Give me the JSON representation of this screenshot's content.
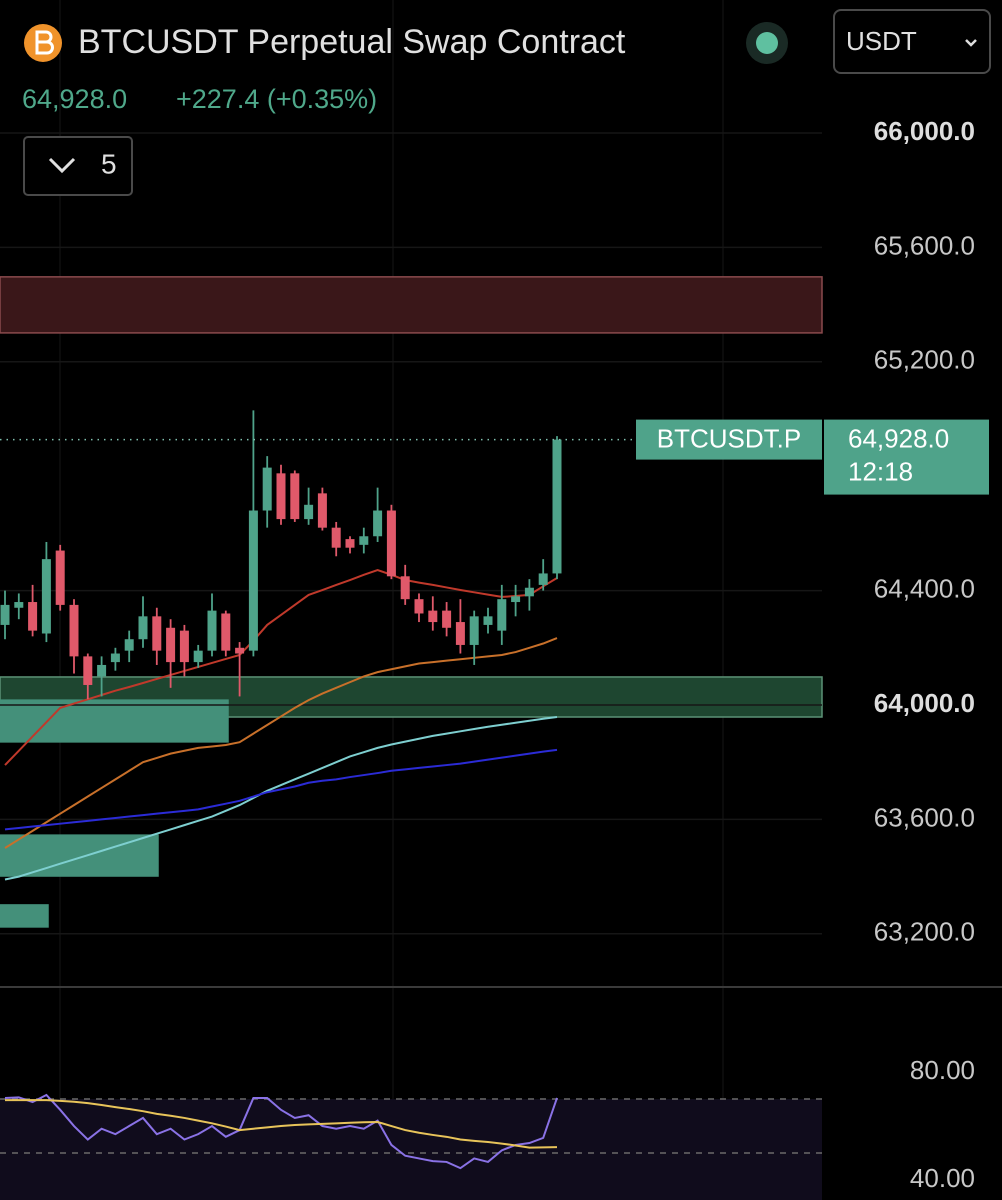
{
  "header": {
    "title": "BTCUSDT Perpetual Swap Contract",
    "price": "64,928.0",
    "change": "+227.4 (+0.35%)",
    "currency": "USDT",
    "indicator_count": "5"
  },
  "chart_data": [
    {
      "type": "candlestick",
      "ylim": [
        63014,
        66465
      ],
      "yticks": [
        {
          "value": 66000,
          "label": "66,000.0"
        },
        {
          "value": 65600,
          "label": "65,600.0"
        },
        {
          "value": 65200,
          "label": "65,200.0"
        },
        {
          "value": 64400,
          "label": "64,400.0"
        },
        {
          "value": 64000,
          "label": "64,000.0"
        },
        {
          "value": 63600,
          "label": "63,600.0"
        },
        {
          "value": 63200,
          "label": "63,200.0"
        }
      ],
      "grid": true,
      "up_color": "#4fa38a",
      "down_color": "#e0596a",
      "open": [
        64280,
        64340,
        64360,
        64250,
        64540,
        64350,
        64170,
        64100,
        64150,
        64190,
        64230,
        64310,
        64270,
        64260,
        64150,
        64190,
        64320,
        64200,
        64190,
        64680,
        64810,
        64810,
        64650,
        64740,
        64620,
        64580,
        64560,
        64590,
        64680,
        64450,
        64370,
        64330,
        64330,
        64290,
        64210,
        64280,
        64260,
        64360,
        64380,
        64420,
        64460
      ],
      "high": [
        64400,
        64390,
        64420,
        64570,
        64560,
        64370,
        64180,
        64170,
        64200,
        64260,
        64380,
        64340,
        64300,
        64280,
        64210,
        64390,
        64330,
        64220,
        65030,
        64870,
        64840,
        64820,
        64760,
        64760,
        64640,
        64590,
        64620,
        64760,
        64700,
        64490,
        64390,
        64380,
        64360,
        64370,
        64330,
        64340,
        64420,
        64420,
        64440,
        64510,
        64940
      ],
      "low": [
        64230,
        64300,
        64240,
        64220,
        64330,
        64110,
        64020,
        64030,
        64120,
        64150,
        64200,
        64140,
        64060,
        64100,
        64130,
        64170,
        64170,
        64030,
        64170,
        64620,
        64630,
        64640,
        64630,
        64610,
        64520,
        64530,
        64530,
        64570,
        64440,
        64350,
        64290,
        64260,
        64240,
        64180,
        64140,
        64250,
        64210,
        64310,
        64330,
        64400,
        64440
      ],
      "close": [
        64350,
        64360,
        64260,
        64510,
        64350,
        64170,
        64070,
        64140,
        64180,
        64230,
        64310,
        64190,
        64150,
        64150,
        64190,
        64330,
        64190,
        64180,
        64680,
        64830,
        64650,
        64650,
        64700,
        64620,
        64550,
        64550,
        64590,
        64680,
        64450,
        64370,
        64320,
        64290,
        64270,
        64210,
        64310,
        64310,
        64370,
        64380,
        64410,
        64460,
        64928
      ],
      "series": [
        {
          "color": "#c0392b",
          "values": [
            63790,
            63840,
            63890,
            63940,
            63990,
            64005,
            64020,
            64035,
            64050,
            64063,
            64077,
            64091,
            64105,
            64119,
            64133,
            64147,
            64161,
            64175,
            64225,
            64280,
            64315,
            64350,
            64385,
            64402,
            64420,
            64437,
            64455,
            64472,
            64455,
            64437,
            64428,
            64420,
            64411,
            64402,
            64394,
            64386,
            64378,
            64381,
            64385,
            64415,
            64444
          ]
        },
        {
          "color": "#c8702a",
          "values": [
            63500,
            63530,
            63560,
            63590,
            63620,
            63650,
            63680,
            63710,
            63740,
            63770,
            63800,
            63815,
            63830,
            63840,
            63850,
            63855,
            63860,
            63870,
            63900,
            63930,
            63960,
            63990,
            64017,
            64040,
            64060,
            64080,
            64100,
            64115,
            64125,
            64135,
            64145,
            64150,
            64155,
            64160,
            64165,
            64170,
            64175,
            64185,
            64200,
            64215,
            64234
          ]
        },
        {
          "color": "#7ecfd0",
          "values": [
            63390,
            63400,
            63415,
            63430,
            63445,
            63460,
            63475,
            63490,
            63505,
            63520,
            63535,
            63550,
            63565,
            63580,
            63595,
            63610,
            63630,
            63650,
            63675,
            63700,
            63720,
            63740,
            63760,
            63780,
            63800,
            63820,
            63835,
            63850,
            63862,
            63872,
            63882,
            63892,
            63900,
            63908,
            63916,
            63924,
            63931,
            63938,
            63945,
            63952,
            63958
          ]
        },
        {
          "color": "#2b2bd6",
          "values": [
            63565,
            63570,
            63575,
            63580,
            63585,
            63590,
            63595,
            63600,
            63605,
            63610,
            63615,
            63620,
            63625,
            63630,
            63635,
            63645,
            63655,
            63665,
            63680,
            63695,
            63705,
            63715,
            63728,
            63735,
            63740,
            63748,
            63755,
            63762,
            63770,
            63775,
            63780,
            63785,
            63790,
            63795,
            63802,
            63809,
            63816,
            63823,
            63830,
            63837,
            63843
          ]
        }
      ],
      "zones": [
        {
          "low": 65301,
          "high": 65497,
          "color": "#3a1719",
          "border": "#8a4a4d"
        },
        {
          "low": 63958,
          "high": 64098,
          "color": "#1e4630",
          "border": "#5c9277"
        },
        {
          "low": 63871,
          "high": 64017,
          "color": "#44907a",
          "border": "#44907a"
        },
        {
          "low": 63402,
          "high": 63545,
          "color": "#44907a",
          "border": "#44907a"
        },
        {
          "low": 63224,
          "high": 63301,
          "color": "#44907a",
          "border": "#44907a"
        }
      ],
      "last_price": {
        "value": 64928,
        "label": "64,928.0"
      },
      "price_tag": "BTCUSDT.P",
      "countdown": "12:18"
    },
    {
      "type": "line",
      "ylim": [
        32.6,
        111.5
      ],
      "yticks": [
        {
          "value": 80,
          "label": "80.00"
        },
        {
          "value": 40,
          "label": "40.00"
        }
      ],
      "upper_band": 70,
      "middle_band": 50,
      "lower_band": 30,
      "band_color": "#100c1c",
      "series": [
        {
          "color": "#8a72e6",
          "values": [
            70.4,
            70.6,
            68.9,
            71.5,
            66,
            60,
            55,
            59,
            57,
            60,
            63,
            57,
            59,
            55,
            57,
            60,
            56,
            58.5,
            70.4,
            70.4,
            66,
            63,
            64,
            60,
            59,
            60,
            59,
            62,
            53,
            49,
            48,
            47,
            46.7,
            44.4,
            48,
            46.7,
            51,
            53,
            53.7,
            55.6,
            70.4
          ]
        },
        {
          "color": "#e8c45a",
          "values": [
            69.6,
            69.6,
            69.6,
            69.6,
            69.3,
            69,
            68.5,
            67.8,
            67,
            66.3,
            65.5,
            64.5,
            63.8,
            63,
            62,
            61,
            59.8,
            58.5,
            59,
            59.5,
            60,
            60.4,
            60.6,
            60.8,
            61,
            61.2,
            61.4,
            61.5,
            60,
            58.5,
            57.5,
            56.7,
            56,
            55,
            54.5,
            54.1,
            53.5,
            52.8,
            52,
            52.1,
            52.2
          ]
        }
      ]
    }
  ]
}
